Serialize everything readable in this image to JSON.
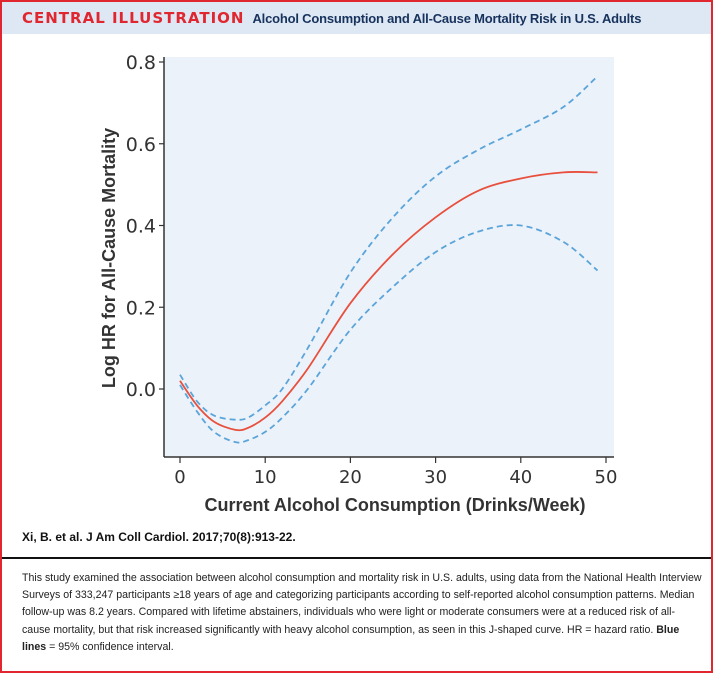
{
  "header": {
    "tag": "CENTRAL ILLUSTRATION",
    "title": "Alcohol Consumption and All-Cause Mortality Risk in U.S. Adults"
  },
  "colors": {
    "border": "#e0262f",
    "header_bg": "#dde8f4",
    "plot_bg": "#ebf2fa",
    "estimate_line": "#e8503d",
    "ci_line": "#5ba4d9"
  },
  "chart_data": {
    "type": "line",
    "title": "",
    "xlabel": "Current Alcohol Consumption (Drinks/Week)",
    "ylabel": "Log HR for All-Cause Mortality",
    "xlim": [
      0,
      50
    ],
    "ylim": [
      -0.2,
      0.8
    ],
    "xticks": [
      0,
      10,
      20,
      30,
      40,
      50
    ],
    "xtick_labels": [
      "0",
      "10",
      "20",
      "30",
      "40",
      "50"
    ],
    "yticks": [
      0.0,
      0.2,
      0.4,
      0.6,
      0.8
    ],
    "ytick_labels": [
      "0.0",
      "0.2",
      "0.4",
      "0.6",
      "0.8"
    ],
    "grid": false,
    "legend": "none",
    "x": [
      0,
      2,
      4,
      6.5,
      8,
      10,
      12,
      15,
      20,
      25,
      30,
      35,
      40,
      45,
      49
    ],
    "series": [
      {
        "name": "Log HR estimate",
        "style": "solid",
        "values": [
          0.02,
          -0.04,
          -0.08,
          -0.1,
          -0.095,
          -0.07,
          -0.03,
          0.05,
          0.21,
          0.33,
          0.42,
          0.485,
          0.515,
          0.53,
          0.53
        ]
      },
      {
        "name": "Upper 95% CI",
        "style": "dashed",
        "values": [
          0.035,
          -0.03,
          -0.065,
          -0.075,
          -0.07,
          -0.04,
          0.0,
          0.1,
          0.285,
          0.42,
          0.52,
          0.585,
          0.635,
          0.69,
          0.765
        ]
      },
      {
        "name": "Lower 95% CI",
        "style": "dashed",
        "values": [
          0.01,
          -0.055,
          -0.105,
          -0.13,
          -0.125,
          -0.105,
          -0.07,
          0.0,
          0.145,
          0.25,
          0.335,
          0.385,
          0.4,
          0.36,
          0.29
        ]
      }
    ]
  },
  "citation": "Xi, B. et al. J Am Coll Cardiol. 2017;70(8):913-22.",
  "caption": {
    "text": "This study examined the association between alcohol consumption and mortality risk in U.S. adults, using data from the National Health Interview Surveys of 333,247 participants ≥18 years of age and categorizing participants according to self-reported alcohol consumption patterns. Median follow-up was 8.2 years. Compared with lifetime abstainers, individuals who were light or moderate consumers were at a reduced risk of all-cause mortality, but that risk increased significantly with heavy alcohol consumption, as seen in this J-shaped curve. HR = hazard ratio. ",
    "bold_term": "Blue lines",
    "bold_tail": " = 95% confidence interval."
  }
}
